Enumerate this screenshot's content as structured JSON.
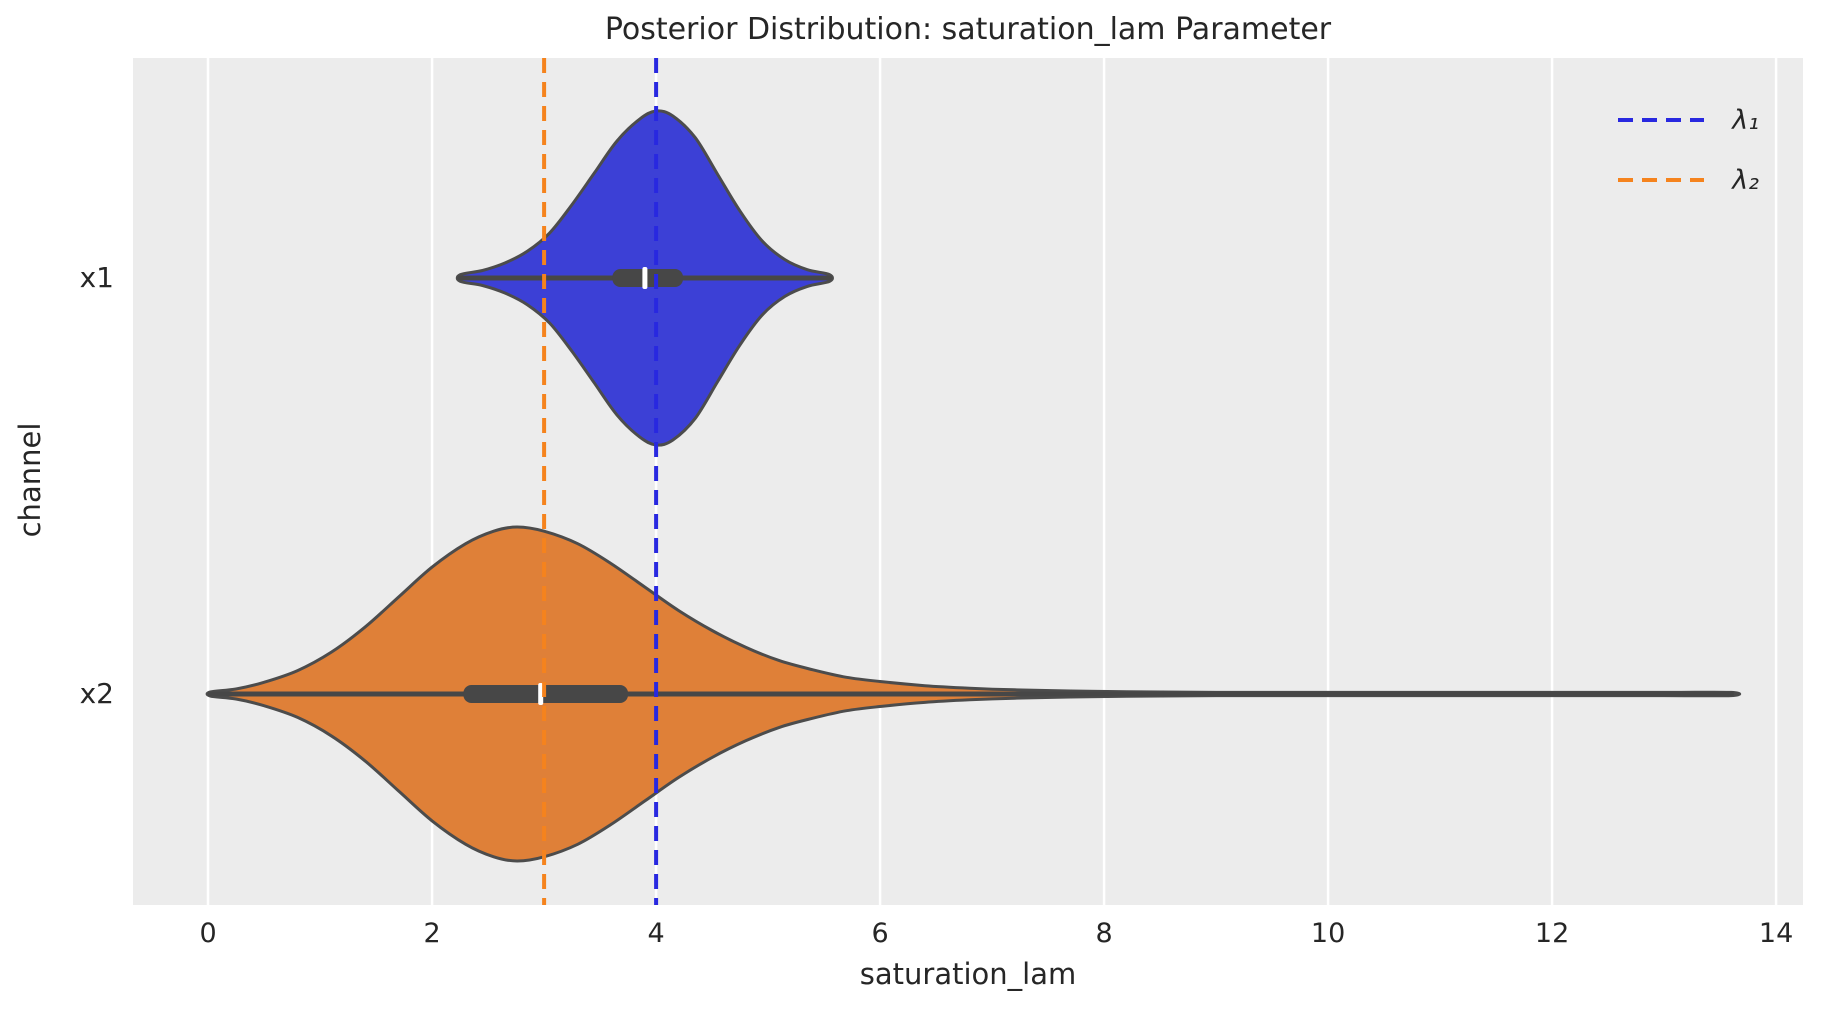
{
  "title": "Posterior Distribution: saturation_lam Parameter",
  "legend": {
    "items": [
      {
        "label": "λ₁",
        "color": "#2828e0"
      },
      {
        "label": "λ₂",
        "color": "#f5831d"
      }
    ]
  },
  "style": {
    "background": "#ffffff",
    "panel_bg": "#ececec",
    "grid_color": "#ffffff",
    "outline_color": "#4c4c4c",
    "box_color": "#474747",
    "median_color": "#ffffff",
    "text_color": "#262626"
  },
  "chart_data": {
    "type": "violin",
    "orientation": "horizontal",
    "title": "Posterior Distribution: saturation_lam Parameter",
    "xlabel": "saturation_lam",
    "ylabel": "channel",
    "categories": [
      "x1",
      "x2"
    ],
    "x_ticks": [
      0,
      2,
      4,
      6,
      8,
      10,
      12,
      14
    ],
    "xlim": [
      -0.67,
      14.24
    ],
    "grid": "vertical-only",
    "legend_position": "upper-right",
    "series": [
      {
        "channel": "x1",
        "color": "#3c40d6",
        "support": [
          2.25,
          5.55
        ],
        "peak": 4.0,
        "median": 3.9,
        "q1": 3.61,
        "q3": 4.24,
        "profile": [
          [
            2.25,
            0.02
          ],
          [
            2.45,
            0.045
          ],
          [
            2.65,
            0.09
          ],
          [
            2.85,
            0.16
          ],
          [
            3.05,
            0.27
          ],
          [
            3.25,
            0.44
          ],
          [
            3.45,
            0.63
          ],
          [
            3.65,
            0.82
          ],
          [
            3.85,
            0.95
          ],
          [
            4.0,
            1.0
          ],
          [
            4.15,
            0.97
          ],
          [
            4.35,
            0.84
          ],
          [
            4.55,
            0.62
          ],
          [
            4.75,
            0.4
          ],
          [
            4.95,
            0.22
          ],
          [
            5.15,
            0.11
          ],
          [
            5.35,
            0.05
          ],
          [
            5.55,
            0.02
          ]
        ]
      },
      {
        "channel": "x2",
        "color": "#df8038",
        "support": [
          0.02,
          13.6
        ],
        "peak": 2.76,
        "median": 2.97,
        "q1": 2.28,
        "q3": 3.75,
        "profile": [
          [
            0.02,
            0.012
          ],
          [
            0.25,
            0.03
          ],
          [
            0.5,
            0.07
          ],
          [
            0.8,
            0.14
          ],
          [
            1.1,
            0.25
          ],
          [
            1.4,
            0.4
          ],
          [
            1.7,
            0.58
          ],
          [
            2.0,
            0.76
          ],
          [
            2.3,
            0.9
          ],
          [
            2.55,
            0.975
          ],
          [
            2.76,
            1.0
          ],
          [
            3.0,
            0.975
          ],
          [
            3.3,
            0.9
          ],
          [
            3.6,
            0.78
          ],
          [
            3.9,
            0.64
          ],
          [
            4.2,
            0.5
          ],
          [
            4.5,
            0.38
          ],
          [
            4.8,
            0.28
          ],
          [
            5.1,
            0.2
          ],
          [
            5.4,
            0.145
          ],
          [
            5.7,
            0.1
          ],
          [
            6.0,
            0.075
          ],
          [
            6.4,
            0.05
          ],
          [
            6.8,
            0.035
          ],
          [
            7.2,
            0.025
          ],
          [
            7.7,
            0.018
          ],
          [
            8.2,
            0.013
          ],
          [
            9.0,
            0.009
          ],
          [
            10.0,
            0.006
          ],
          [
            11.0,
            0.005
          ],
          [
            12.0,
            0.004
          ],
          [
            13.0,
            0.003
          ],
          [
            13.6,
            0.002
          ]
        ]
      }
    ],
    "vlines": [
      {
        "label": "λ₁",
        "x": 4.0,
        "color": "#2828e0",
        "style": "dashed"
      },
      {
        "label": "λ₂",
        "x": 3.0,
        "color": "#f5831d",
        "style": "dashed"
      }
    ]
  }
}
